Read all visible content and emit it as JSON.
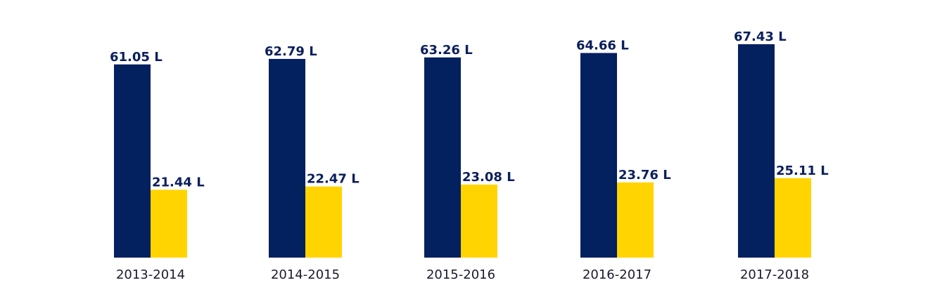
{
  "chart_data": {
    "type": "bar",
    "categories": [
      "2013-2014",
      "2014-2015",
      "2015-2016",
      "2016-2017",
      "2017-2018"
    ],
    "series": [
      {
        "values": [
          61.05,
          62.79,
          63.26,
          64.66,
          67.43
        ],
        "labels": [
          "61.05 L",
          "62.79 L",
          "63.26 L",
          "64.66 L",
          "67.43 L"
        ],
        "color": "#03205f"
      },
      {
        "values": [
          21.44,
          22.47,
          23.08,
          23.76,
          25.11
        ],
        "labels": [
          "21.44 L",
          "22.47 L",
          "23.08 L",
          "23.76 L",
          "25.11 L"
        ],
        "color": "#ffd400"
      }
    ],
    "title": "",
    "xlabel": "",
    "ylabel": "",
    "ylim": [
      0,
      67.43
    ],
    "grid": false,
    "legend": "none"
  }
}
